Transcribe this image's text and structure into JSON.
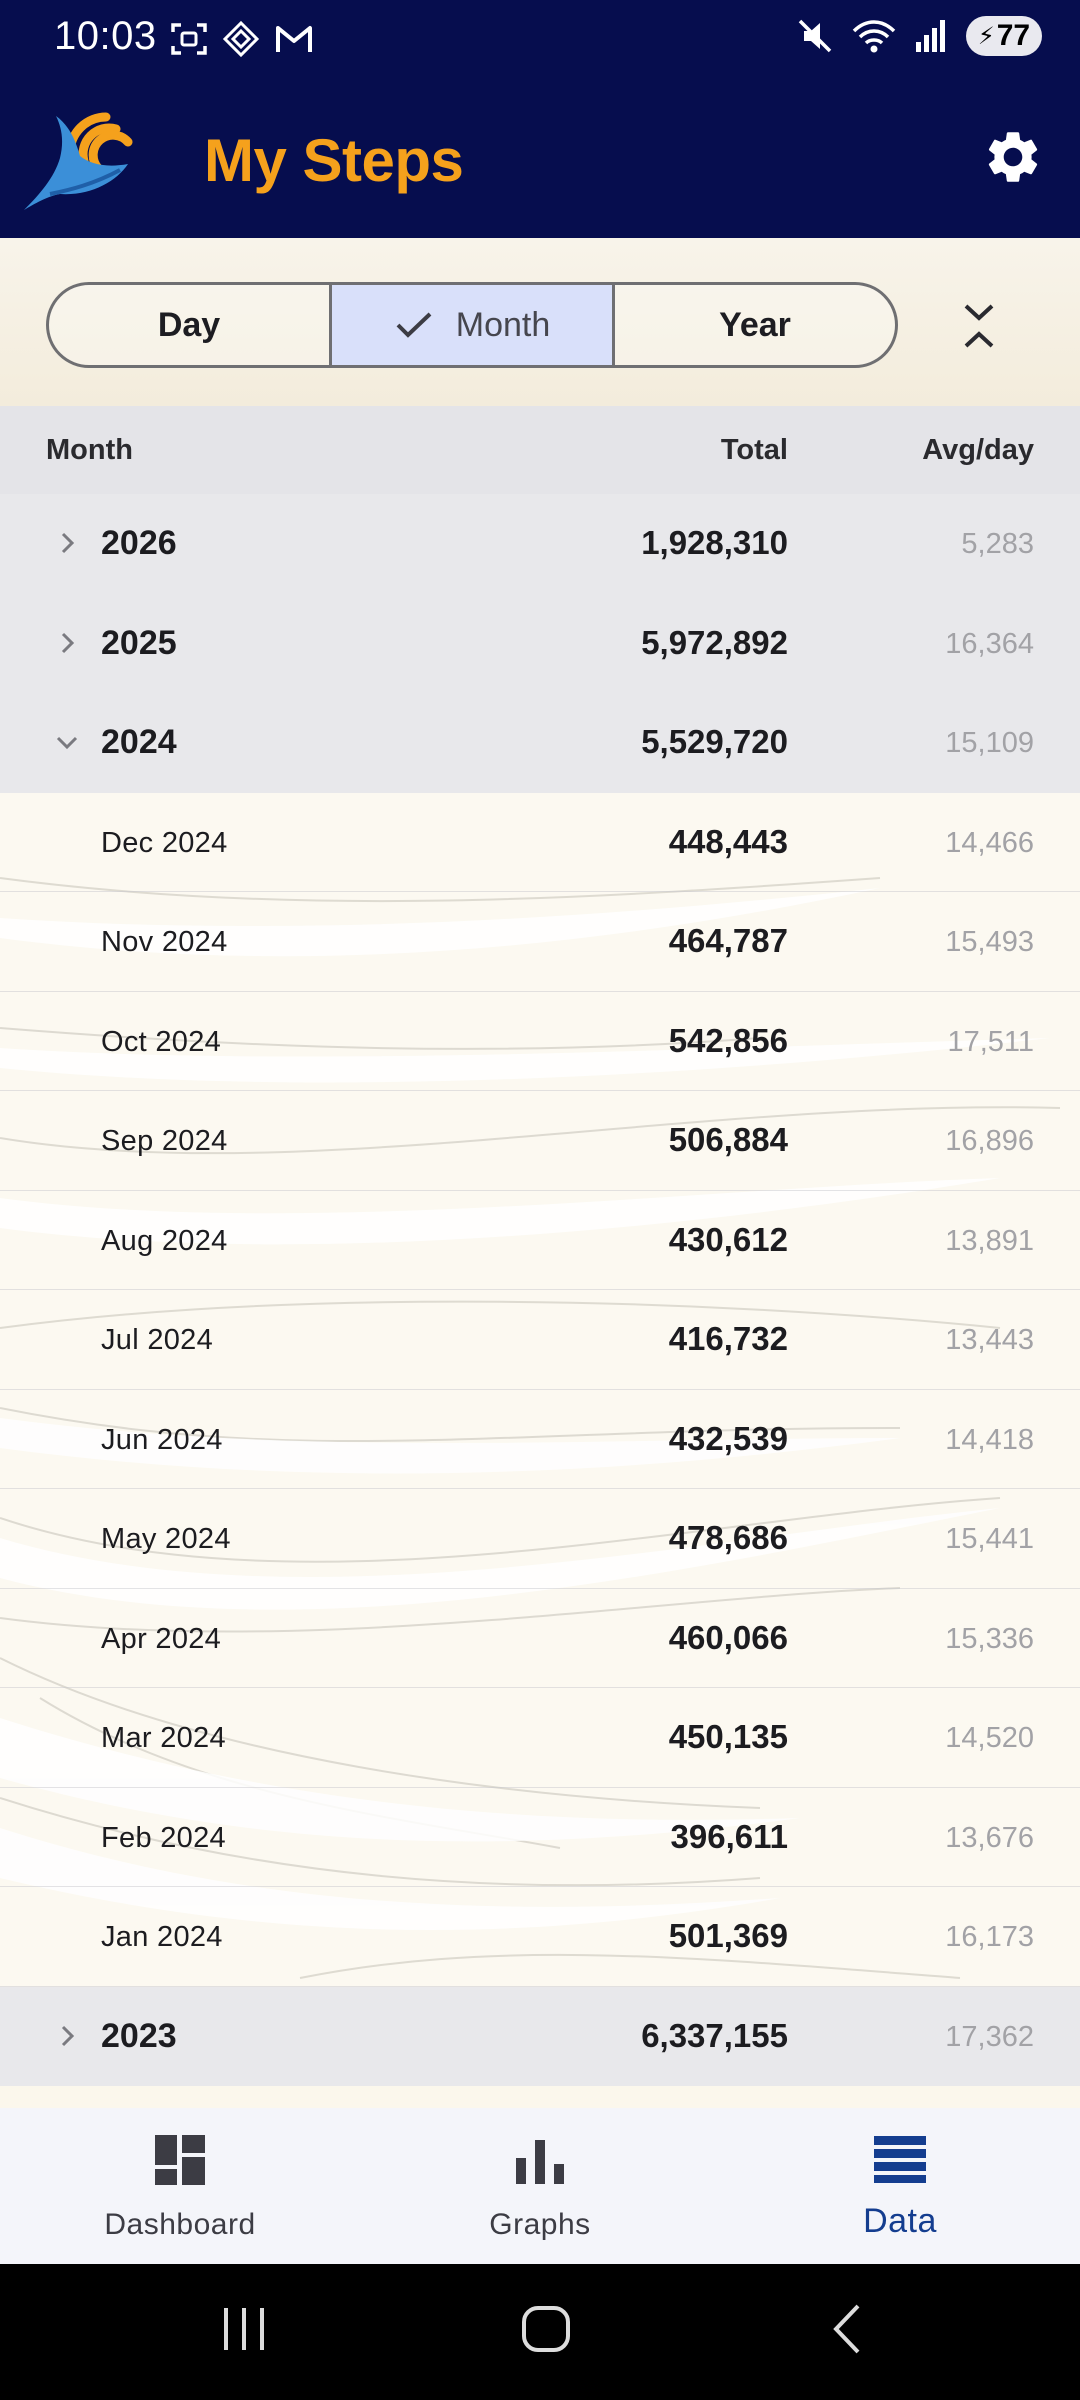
{
  "status_bar": {
    "time": "10:03",
    "battery": "77",
    "left_icons": [
      "screenshot-icon",
      "vpn-icon",
      "gmail-icon"
    ],
    "right_icons": [
      "mute-icon",
      "wifi-icon",
      "signal-icon",
      "battery-icon"
    ]
  },
  "app": {
    "title": "My Steps",
    "accent": "#f5a11c",
    "bar_color": "#060d4e"
  },
  "segments": [
    {
      "label": "Day",
      "active": false
    },
    {
      "label": "Month",
      "active": true
    },
    {
      "label": "Year",
      "active": false
    }
  ],
  "table": {
    "headers": {
      "period": "Month",
      "total": "Total",
      "avg": "Avg/day"
    },
    "rows": [
      {
        "type": "year",
        "label": "2026",
        "total": "1,928,310",
        "avg": "5,283",
        "expanded": false
      },
      {
        "type": "year",
        "label": "2025",
        "total": "5,972,892",
        "avg": "16,364",
        "expanded": false
      },
      {
        "type": "year",
        "label": "2024",
        "total": "5,529,720",
        "avg": "15,109",
        "expanded": true
      },
      {
        "type": "month",
        "label": "Dec 2024",
        "total": "448,443",
        "avg": "14,466"
      },
      {
        "type": "month",
        "label": "Nov 2024",
        "total": "464,787",
        "avg": "15,493"
      },
      {
        "type": "month",
        "label": "Oct 2024",
        "total": "542,856",
        "avg": "17,511"
      },
      {
        "type": "month",
        "label": "Sep 2024",
        "total": "506,884",
        "avg": "16,896"
      },
      {
        "type": "month",
        "label": "Aug 2024",
        "total": "430,612",
        "avg": "13,891"
      },
      {
        "type": "month",
        "label": "Jul 2024",
        "total": "416,732",
        "avg": "13,443"
      },
      {
        "type": "month",
        "label": "Jun 2024",
        "total": "432,539",
        "avg": "14,418"
      },
      {
        "type": "month",
        "label": "May 2024",
        "total": "478,686",
        "avg": "15,441"
      },
      {
        "type": "month",
        "label": "Apr 2024",
        "total": "460,066",
        "avg": "15,336"
      },
      {
        "type": "month",
        "label": "Mar 2024",
        "total": "450,135",
        "avg": "14,520"
      },
      {
        "type": "month",
        "label": "Feb 2024",
        "total": "396,611",
        "avg": "13,676"
      },
      {
        "type": "month",
        "label": "Jan 2024",
        "total": "501,369",
        "avg": "16,173"
      },
      {
        "type": "year",
        "label": "2023",
        "total": "6,337,155",
        "avg": "17,362",
        "expanded": false
      }
    ]
  },
  "bottom_nav": [
    {
      "label": "Dashboard",
      "icon": "dashboard-icon",
      "active": false
    },
    {
      "label": "Graphs",
      "icon": "bar-chart-icon",
      "active": false
    },
    {
      "label": "Data",
      "icon": "list-icon",
      "active": true
    }
  ],
  "system_nav": [
    "recents-button",
    "home-button",
    "back-button"
  ]
}
